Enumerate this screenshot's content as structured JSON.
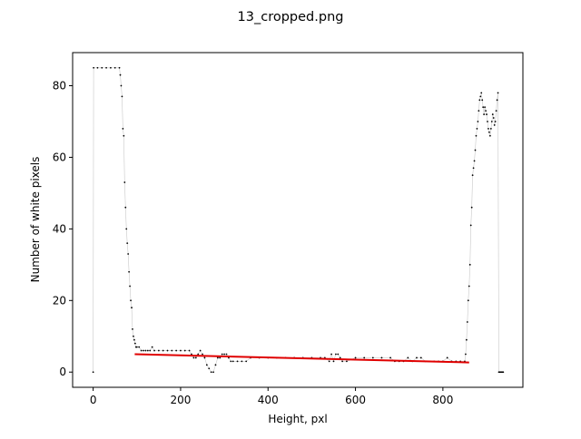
{
  "figure": {
    "title": "13_cropped.png"
  },
  "chart_data": {
    "type": "scatter",
    "title": "13_cropped.png",
    "xlabel": "Height, pxl",
    "ylabel": "Number of white pixels",
    "xlim": [
      -47,
      983
    ],
    "ylim": [
      -4.25,
      89.25
    ],
    "xticks": [
      0,
      200,
      400,
      600,
      800
    ],
    "yticks": [
      0,
      20,
      40,
      60,
      80
    ],
    "grid": false,
    "legend": "none",
    "series": [
      {
        "style": "black point markers joined by a thin light-grey line",
        "color": "#000000",
        "line_color": "#c8c8c8",
        "x": [
          0,
          1,
          10,
          20,
          30,
          40,
          50,
          60,
          62,
          64,
          66,
          68,
          70,
          72,
          74,
          76,
          78,
          80,
          82,
          84,
          86,
          88,
          90,
          92,
          94,
          96,
          98,
          100,
          105,
          110,
          115,
          120,
          125,
          130,
          135,
          140,
          150,
          160,
          170,
          180,
          190,
          200,
          210,
          220,
          225,
          230,
          235,
          240,
          245,
          250,
          255,
          260,
          265,
          270,
          275,
          280,
          285,
          290,
          295,
          300,
          305,
          310,
          315,
          320,
          330,
          340,
          350,
          360,
          380,
          400,
          420,
          440,
          460,
          480,
          500,
          520,
          530,
          540,
          545,
          550,
          555,
          560,
          565,
          570,
          580,
          600,
          620,
          640,
          660,
          680,
          690,
          700,
          710,
          720,
          730,
          740,
          750,
          760,
          770,
          780,
          790,
          800,
          810,
          820,
          830,
          840,
          850,
          852,
          854,
          856,
          858,
          860,
          862,
          864,
          866,
          868,
          870,
          872,
          874,
          876,
          878,
          880,
          882,
          884,
          886,
          888,
          890,
          892,
          894,
          896,
          898,
          900,
          902,
          904,
          906,
          908,
          910,
          912,
          914,
          916,
          918,
          920,
          922,
          924,
          926,
          928,
          930,
          932,
          934,
          936,
          938
        ],
        "y": [
          0,
          85,
          85,
          85,
          85,
          85,
          85,
          85,
          83,
          80,
          77,
          68,
          66,
          53,
          46,
          40,
          36,
          33,
          28,
          24,
          20,
          18,
          12,
          10,
          9,
          8,
          7,
          7,
          7,
          6,
          6,
          6,
          6,
          6,
          7,
          6,
          6,
          6,
          6,
          6,
          6,
          6,
          6,
          6,
          5,
          4,
          4,
          5,
          6,
          5,
          4,
          2,
          1,
          0,
          0,
          2,
          4,
          4,
          5,
          5,
          5,
          4,
          3,
          3,
          3,
          3,
          3,
          4,
          4,
          4,
          4,
          4,
          4,
          4,
          4,
          4,
          4,
          3,
          5,
          3,
          5,
          5,
          4,
          3,
          3,
          4,
          4,
          4,
          4,
          4,
          3,
          3,
          3,
          4,
          3,
          4,
          4,
          3,
          3,
          3,
          3,
          3,
          4,
          3,
          3,
          3,
          3,
          5,
          9,
          14,
          20,
          24,
          30,
          41,
          46,
          55,
          57,
          59,
          62,
          66,
          68,
          70,
          73,
          76,
          77,
          78,
          76,
          74,
          72,
          74,
          73,
          72,
          70,
          68,
          67,
          66,
          68,
          70,
          72,
          71,
          69,
          70,
          73,
          76,
          78,
          0,
          0,
          0,
          0,
          0,
          0
        ]
      },
      {
        "style": "fitted line",
        "color": "#e00000",
        "x": [
          95,
          860
        ],
        "y": [
          5.0,
          2.7
        ]
      }
    ]
  }
}
